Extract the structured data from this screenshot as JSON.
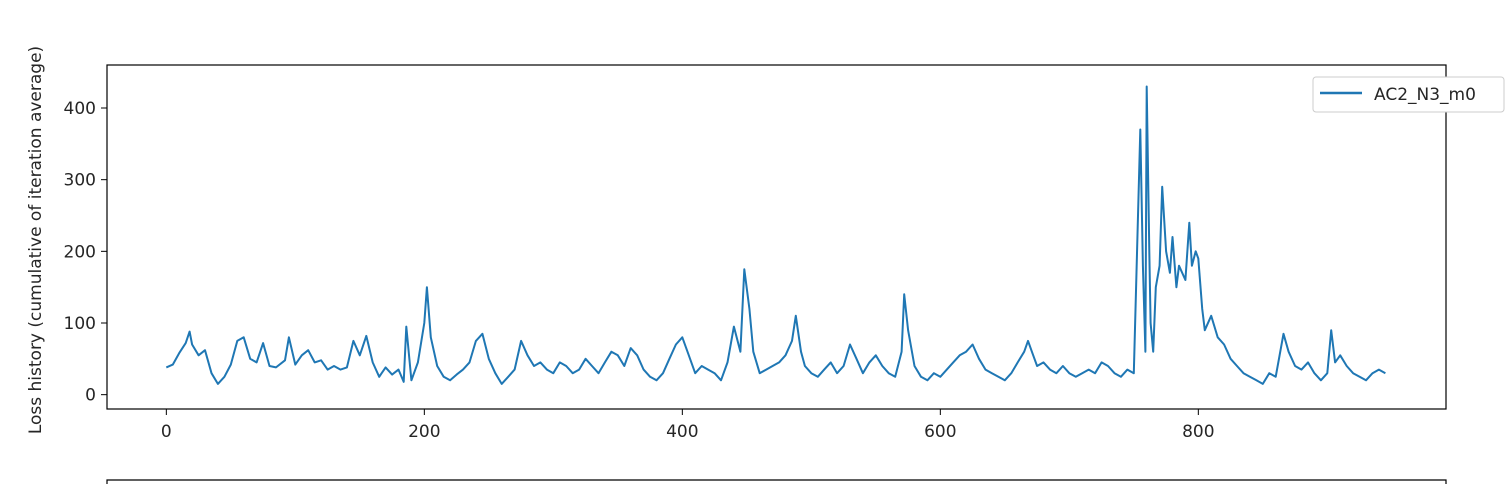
{
  "chart_data": {
    "type": "line",
    "title": "",
    "xlabel": "",
    "ylabel": "Loss history (cumulative of iteration average)",
    "xlim": [
      -46,
      992
    ],
    "ylim": [
      -20,
      460
    ],
    "xticks": [
      0,
      200,
      400,
      600,
      800
    ],
    "yticks": [
      0,
      100,
      200,
      300,
      400
    ],
    "grid": false,
    "legend": "top-right",
    "series": [
      {
        "name": "AC2_N3_m0",
        "color": "#1f77b4",
        "x": [
          0,
          5,
          10,
          15,
          18,
          20,
          25,
          30,
          35,
          40,
          45,
          50,
          55,
          60,
          65,
          70,
          75,
          80,
          85,
          92,
          95,
          100,
          105,
          110,
          115,
          120,
          125,
          130,
          135,
          140,
          145,
          150,
          155,
          160,
          165,
          170,
          175,
          180,
          184,
          186,
          190,
          195,
          200,
          202,
          205,
          210,
          215,
          220,
          225,
          230,
          235,
          240,
          245,
          250,
          255,
          260,
          265,
          270,
          275,
          280,
          285,
          290,
          295,
          300,
          305,
          310,
          315,
          320,
          325,
          330,
          335,
          340,
          345,
          350,
          355,
          360,
          365,
          370,
          375,
          380,
          385,
          390,
          395,
          400,
          405,
          410,
          415,
          420,
          425,
          430,
          435,
          440,
          445,
          448,
          452,
          455,
          460,
          465,
          470,
          475,
          480,
          485,
          488,
          492,
          495,
          500,
          505,
          510,
          515,
          520,
          525,
          530,
          535,
          540,
          545,
          550,
          555,
          560,
          565,
          570,
          572,
          575,
          580,
          585,
          590,
          595,
          600,
          605,
          610,
          615,
          620,
          625,
          630,
          635,
          640,
          645,
          650,
          655,
          660,
          665,
          668,
          672,
          675,
          680,
          685,
          690,
          695,
          700,
          705,
          710,
          715,
          720,
          725,
          730,
          735,
          740,
          745,
          750,
          755,
          757,
          759,
          760,
          762,
          763,
          765,
          767,
          770,
          772,
          775,
          778,
          780,
          783,
          785,
          790,
          793,
          795,
          798,
          800,
          803,
          805,
          810,
          815,
          820,
          825,
          830,
          835,
          840,
          845,
          850,
          855,
          860,
          863,
          866,
          870,
          875,
          880,
          885,
          890,
          895,
          900,
          903,
          906,
          910,
          915,
          920,
          925,
          930,
          935,
          940,
          945
        ],
        "values": [
          38,
          42,
          58,
          72,
          88,
          70,
          55,
          62,
          30,
          15,
          25,
          42,
          75,
          80,
          50,
          45,
          72,
          40,
          38,
          48,
          80,
          42,
          55,
          62,
          45,
          48,
          35,
          40,
          35,
          38,
          75,
          55,
          82,
          45,
          25,
          38,
          28,
          35,
          18,
          95,
          20,
          45,
          100,
          150,
          80,
          40,
          25,
          20,
          28,
          35,
          45,
          75,
          85,
          50,
          30,
          15,
          25,
          35,
          75,
          55,
          40,
          45,
          35,
          30,
          45,
          40,
          30,
          35,
          50,
          40,
          30,
          45,
          60,
          55,
          40,
          65,
          55,
          35,
          25,
          20,
          30,
          50,
          70,
          80,
          55,
          30,
          40,
          35,
          30,
          20,
          45,
          95,
          60,
          175,
          120,
          60,
          30,
          35,
          40,
          45,
          55,
          75,
          110,
          60,
          40,
          30,
          25,
          35,
          45,
          30,
          40,
          70,
          50,
          30,
          45,
          55,
          40,
          30,
          25,
          60,
          140,
          90,
          40,
          25,
          20,
          30,
          25,
          35,
          45,
          55,
          60,
          70,
          50,
          35,
          30,
          25,
          20,
          30,
          45,
          60,
          75,
          55,
          40,
          45,
          35,
          30,
          40,
          30,
          25,
          30,
          35,
          30,
          45,
          40,
          30,
          25,
          35,
          30,
          370,
          180,
          60,
          430,
          200,
          100,
          60,
          150,
          180,
          290,
          200,
          170,
          220,
          150,
          180,
          160,
          240,
          180,
          200,
          190,
          120,
          90,
          110,
          80,
          70,
          50,
          40,
          30,
          25,
          20,
          15,
          30,
          25,
          55,
          85,
          60,
          40,
          35,
          45,
          30,
          20,
          30,
          90,
          45,
          55,
          40,
          30,
          25,
          20,
          30,
          35,
          30
        ]
      }
    ]
  }
}
